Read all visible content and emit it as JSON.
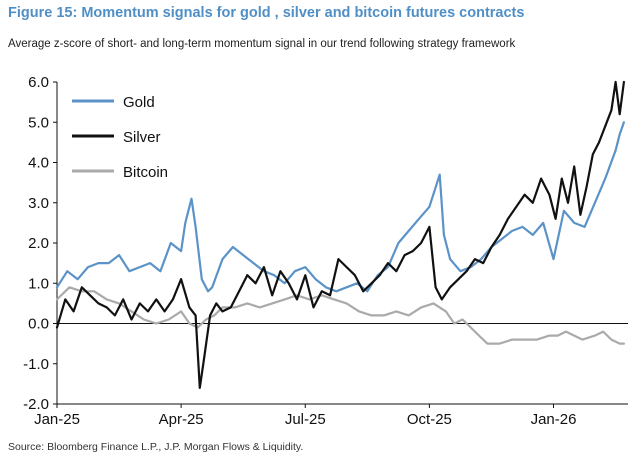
{
  "title": "Figure 15: Momentum signals for gold , silver and bitcoin futures contracts",
  "subtitle": "Average z-score of short- and long-term momentum signal in our trend following strategy framework",
  "source": "Source: Bloomberg Finance L.P., J.P. Morgan Flows & Liquidity.",
  "chart_data": {
    "type": "line",
    "ylim": [
      -2.0,
      6.0
    ],
    "yticks": [
      6.0,
      5.0,
      4.0,
      3.0,
      2.0,
      1.0,
      0.0,
      -1.0,
      -2.0
    ],
    "ytick_labels": [
      "6.0",
      "5.0",
      "4.0",
      "3.0",
      "2.0",
      "1.0",
      "0.0",
      "-1.0",
      "-2.0"
    ],
    "xlim_months": [
      0,
      13.8
    ],
    "xticks": [
      {
        "label": "Jan-25",
        "month": 0
      },
      {
        "label": "Apr-25",
        "month": 3
      },
      {
        "label": "Jul-25",
        "month": 6
      },
      {
        "label": "Oct-25",
        "month": 9
      },
      {
        "label": "Jan-26",
        "month": 12
      }
    ],
    "legend_position": "top-left",
    "series": [
      {
        "name": "Gold",
        "color": "#5b93c8",
        "points": [
          [
            0,
            0.9
          ],
          [
            0.25,
            1.3
          ],
          [
            0.5,
            1.1
          ],
          [
            0.75,
            1.4
          ],
          [
            1,
            1.5
          ],
          [
            1.25,
            1.5
          ],
          [
            1.5,
            1.7
          ],
          [
            1.75,
            1.3
          ],
          [
            2,
            1.4
          ],
          [
            2.25,
            1.5
          ],
          [
            2.5,
            1.3
          ],
          [
            2.75,
            2.0
          ],
          [
            3,
            1.8
          ],
          [
            3.1,
            2.5
          ],
          [
            3.25,
            3.1
          ],
          [
            3.35,
            2.4
          ],
          [
            3.5,
            1.1
          ],
          [
            3.65,
            0.8
          ],
          [
            3.75,
            0.9
          ],
          [
            4,
            1.6
          ],
          [
            4.25,
            1.9
          ],
          [
            4.5,
            1.7
          ],
          [
            4.75,
            1.5
          ],
          [
            5,
            1.3
          ],
          [
            5.25,
            1.2
          ],
          [
            5.5,
            1.0
          ],
          [
            5.75,
            1.3
          ],
          [
            6,
            1.4
          ],
          [
            6.25,
            1.1
          ],
          [
            6.5,
            0.9
          ],
          [
            6.75,
            0.8
          ],
          [
            7,
            0.9
          ],
          [
            7.25,
            1.0
          ],
          [
            7.5,
            0.8
          ],
          [
            7.75,
            1.2
          ],
          [
            8,
            1.4
          ],
          [
            8.25,
            2.0
          ],
          [
            8.5,
            2.3
          ],
          [
            8.75,
            2.6
          ],
          [
            9,
            2.9
          ],
          [
            9.25,
            3.7
          ],
          [
            9.35,
            2.2
          ],
          [
            9.5,
            1.6
          ],
          [
            9.75,
            1.3
          ],
          [
            10,
            1.4
          ],
          [
            10.25,
            1.6
          ],
          [
            10.5,
            1.9
          ],
          [
            10.75,
            2.1
          ],
          [
            11,
            2.3
          ],
          [
            11.25,
            2.4
          ],
          [
            11.5,
            2.2
          ],
          [
            11.75,
            2.5
          ],
          [
            12,
            1.6
          ],
          [
            12.25,
            2.8
          ],
          [
            12.5,
            2.5
          ],
          [
            12.75,
            2.4
          ],
          [
            13,
            3.0
          ],
          [
            13.25,
            3.6
          ],
          [
            13.5,
            4.3
          ],
          [
            13.6,
            4.7
          ],
          [
            13.7,
            5.0
          ]
        ]
      },
      {
        "name": "Silver",
        "color": "#111111",
        "points": [
          [
            0,
            -0.1
          ],
          [
            0.2,
            0.6
          ],
          [
            0.4,
            0.3
          ],
          [
            0.6,
            0.9
          ],
          [
            0.8,
            0.7
          ],
          [
            1,
            0.5
          ],
          [
            1.2,
            0.4
          ],
          [
            1.4,
            0.2
          ],
          [
            1.6,
            0.6
          ],
          [
            1.8,
            0.1
          ],
          [
            2,
            0.5
          ],
          [
            2.2,
            0.3
          ],
          [
            2.4,
            0.6
          ],
          [
            2.6,
            0.3
          ],
          [
            2.8,
            0.6
          ],
          [
            3,
            1.1
          ],
          [
            3.2,
            0.4
          ],
          [
            3.35,
            0.2
          ],
          [
            3.45,
            -1.6
          ],
          [
            3.55,
            -0.9
          ],
          [
            3.7,
            0.2
          ],
          [
            3.85,
            0.5
          ],
          [
            4,
            0.3
          ],
          [
            4.2,
            0.4
          ],
          [
            4.4,
            0.8
          ],
          [
            4.6,
            1.2
          ],
          [
            4.8,
            1.0
          ],
          [
            5,
            1.4
          ],
          [
            5.2,
            0.7
          ],
          [
            5.4,
            1.3
          ],
          [
            5.6,
            1.0
          ],
          [
            5.8,
            0.6
          ],
          [
            6,
            1.2
          ],
          [
            6.2,
            0.4
          ],
          [
            6.4,
            0.8
          ],
          [
            6.6,
            0.7
          ],
          [
            6.8,
            1.6
          ],
          [
            7,
            1.4
          ],
          [
            7.2,
            1.2
          ],
          [
            7.4,
            0.8
          ],
          [
            7.6,
            1.0
          ],
          [
            7.8,
            1.2
          ],
          [
            8,
            1.5
          ],
          [
            8.2,
            1.3
          ],
          [
            8.4,
            1.7
          ],
          [
            8.6,
            1.8
          ],
          [
            8.8,
            2.0
          ],
          [
            9,
            2.4
          ],
          [
            9.15,
            0.9
          ],
          [
            9.3,
            0.6
          ],
          [
            9.5,
            0.9
          ],
          [
            9.7,
            1.1
          ],
          [
            9.9,
            1.3
          ],
          [
            10.1,
            1.6
          ],
          [
            10.3,
            1.5
          ],
          [
            10.5,
            1.9
          ],
          [
            10.7,
            2.2
          ],
          [
            10.9,
            2.6
          ],
          [
            11.1,
            2.9
          ],
          [
            11.3,
            3.2
          ],
          [
            11.5,
            3.0
          ],
          [
            11.7,
            3.6
          ],
          [
            11.9,
            3.2
          ],
          [
            12.05,
            2.6
          ],
          [
            12.2,
            3.6
          ],
          [
            12.35,
            3.0
          ],
          [
            12.5,
            3.9
          ],
          [
            12.65,
            2.7
          ],
          [
            12.8,
            3.4
          ],
          [
            12.95,
            4.2
          ],
          [
            13.1,
            4.5
          ],
          [
            13.25,
            4.9
          ],
          [
            13.4,
            5.3
          ],
          [
            13.5,
            6.0
          ],
          [
            13.6,
            5.2
          ],
          [
            13.7,
            6.0
          ]
        ]
      },
      {
        "name": "Bitcoin",
        "color": "#aaaaaa",
        "points": [
          [
            0,
            0.6
          ],
          [
            0.3,
            0.9
          ],
          [
            0.6,
            0.8
          ],
          [
            0.9,
            0.8
          ],
          [
            1.2,
            0.6
          ],
          [
            1.5,
            0.5
          ],
          [
            1.8,
            0.3
          ],
          [
            2.1,
            0.1
          ],
          [
            2.4,
            0.0
          ],
          [
            2.7,
            0.1
          ],
          [
            3,
            0.3
          ],
          [
            3.2,
            0.0
          ],
          [
            3.4,
            -0.1
          ],
          [
            3.6,
            0.1
          ],
          [
            3.8,
            0.2
          ],
          [
            4,
            0.4
          ],
          [
            4.3,
            0.4
          ],
          [
            4.6,
            0.5
          ],
          [
            4.9,
            0.4
          ],
          [
            5.2,
            0.5
          ],
          [
            5.5,
            0.6
          ],
          [
            5.8,
            0.7
          ],
          [
            6.1,
            0.6
          ],
          [
            6.4,
            0.7
          ],
          [
            6.7,
            0.6
          ],
          [
            7,
            0.5
          ],
          [
            7.3,
            0.3
          ],
          [
            7.6,
            0.2
          ],
          [
            7.9,
            0.2
          ],
          [
            8.2,
            0.3
          ],
          [
            8.5,
            0.2
          ],
          [
            8.8,
            0.4
          ],
          [
            9.1,
            0.5
          ],
          [
            9.4,
            0.3
          ],
          [
            9.6,
            0.0
          ],
          [
            9.8,
            0.1
          ],
          [
            10,
            -0.1
          ],
          [
            10.2,
            -0.3
          ],
          [
            10.4,
            -0.5
          ],
          [
            10.7,
            -0.5
          ],
          [
            11,
            -0.4
          ],
          [
            11.3,
            -0.4
          ],
          [
            11.6,
            -0.4
          ],
          [
            11.9,
            -0.3
          ],
          [
            12.1,
            -0.3
          ],
          [
            12.3,
            -0.2
          ],
          [
            12.5,
            -0.3
          ],
          [
            12.7,
            -0.4
          ],
          [
            13,
            -0.3
          ],
          [
            13.2,
            -0.2
          ],
          [
            13.4,
            -0.4
          ],
          [
            13.6,
            -0.5
          ],
          [
            13.7,
            -0.5
          ]
        ]
      }
    ]
  }
}
